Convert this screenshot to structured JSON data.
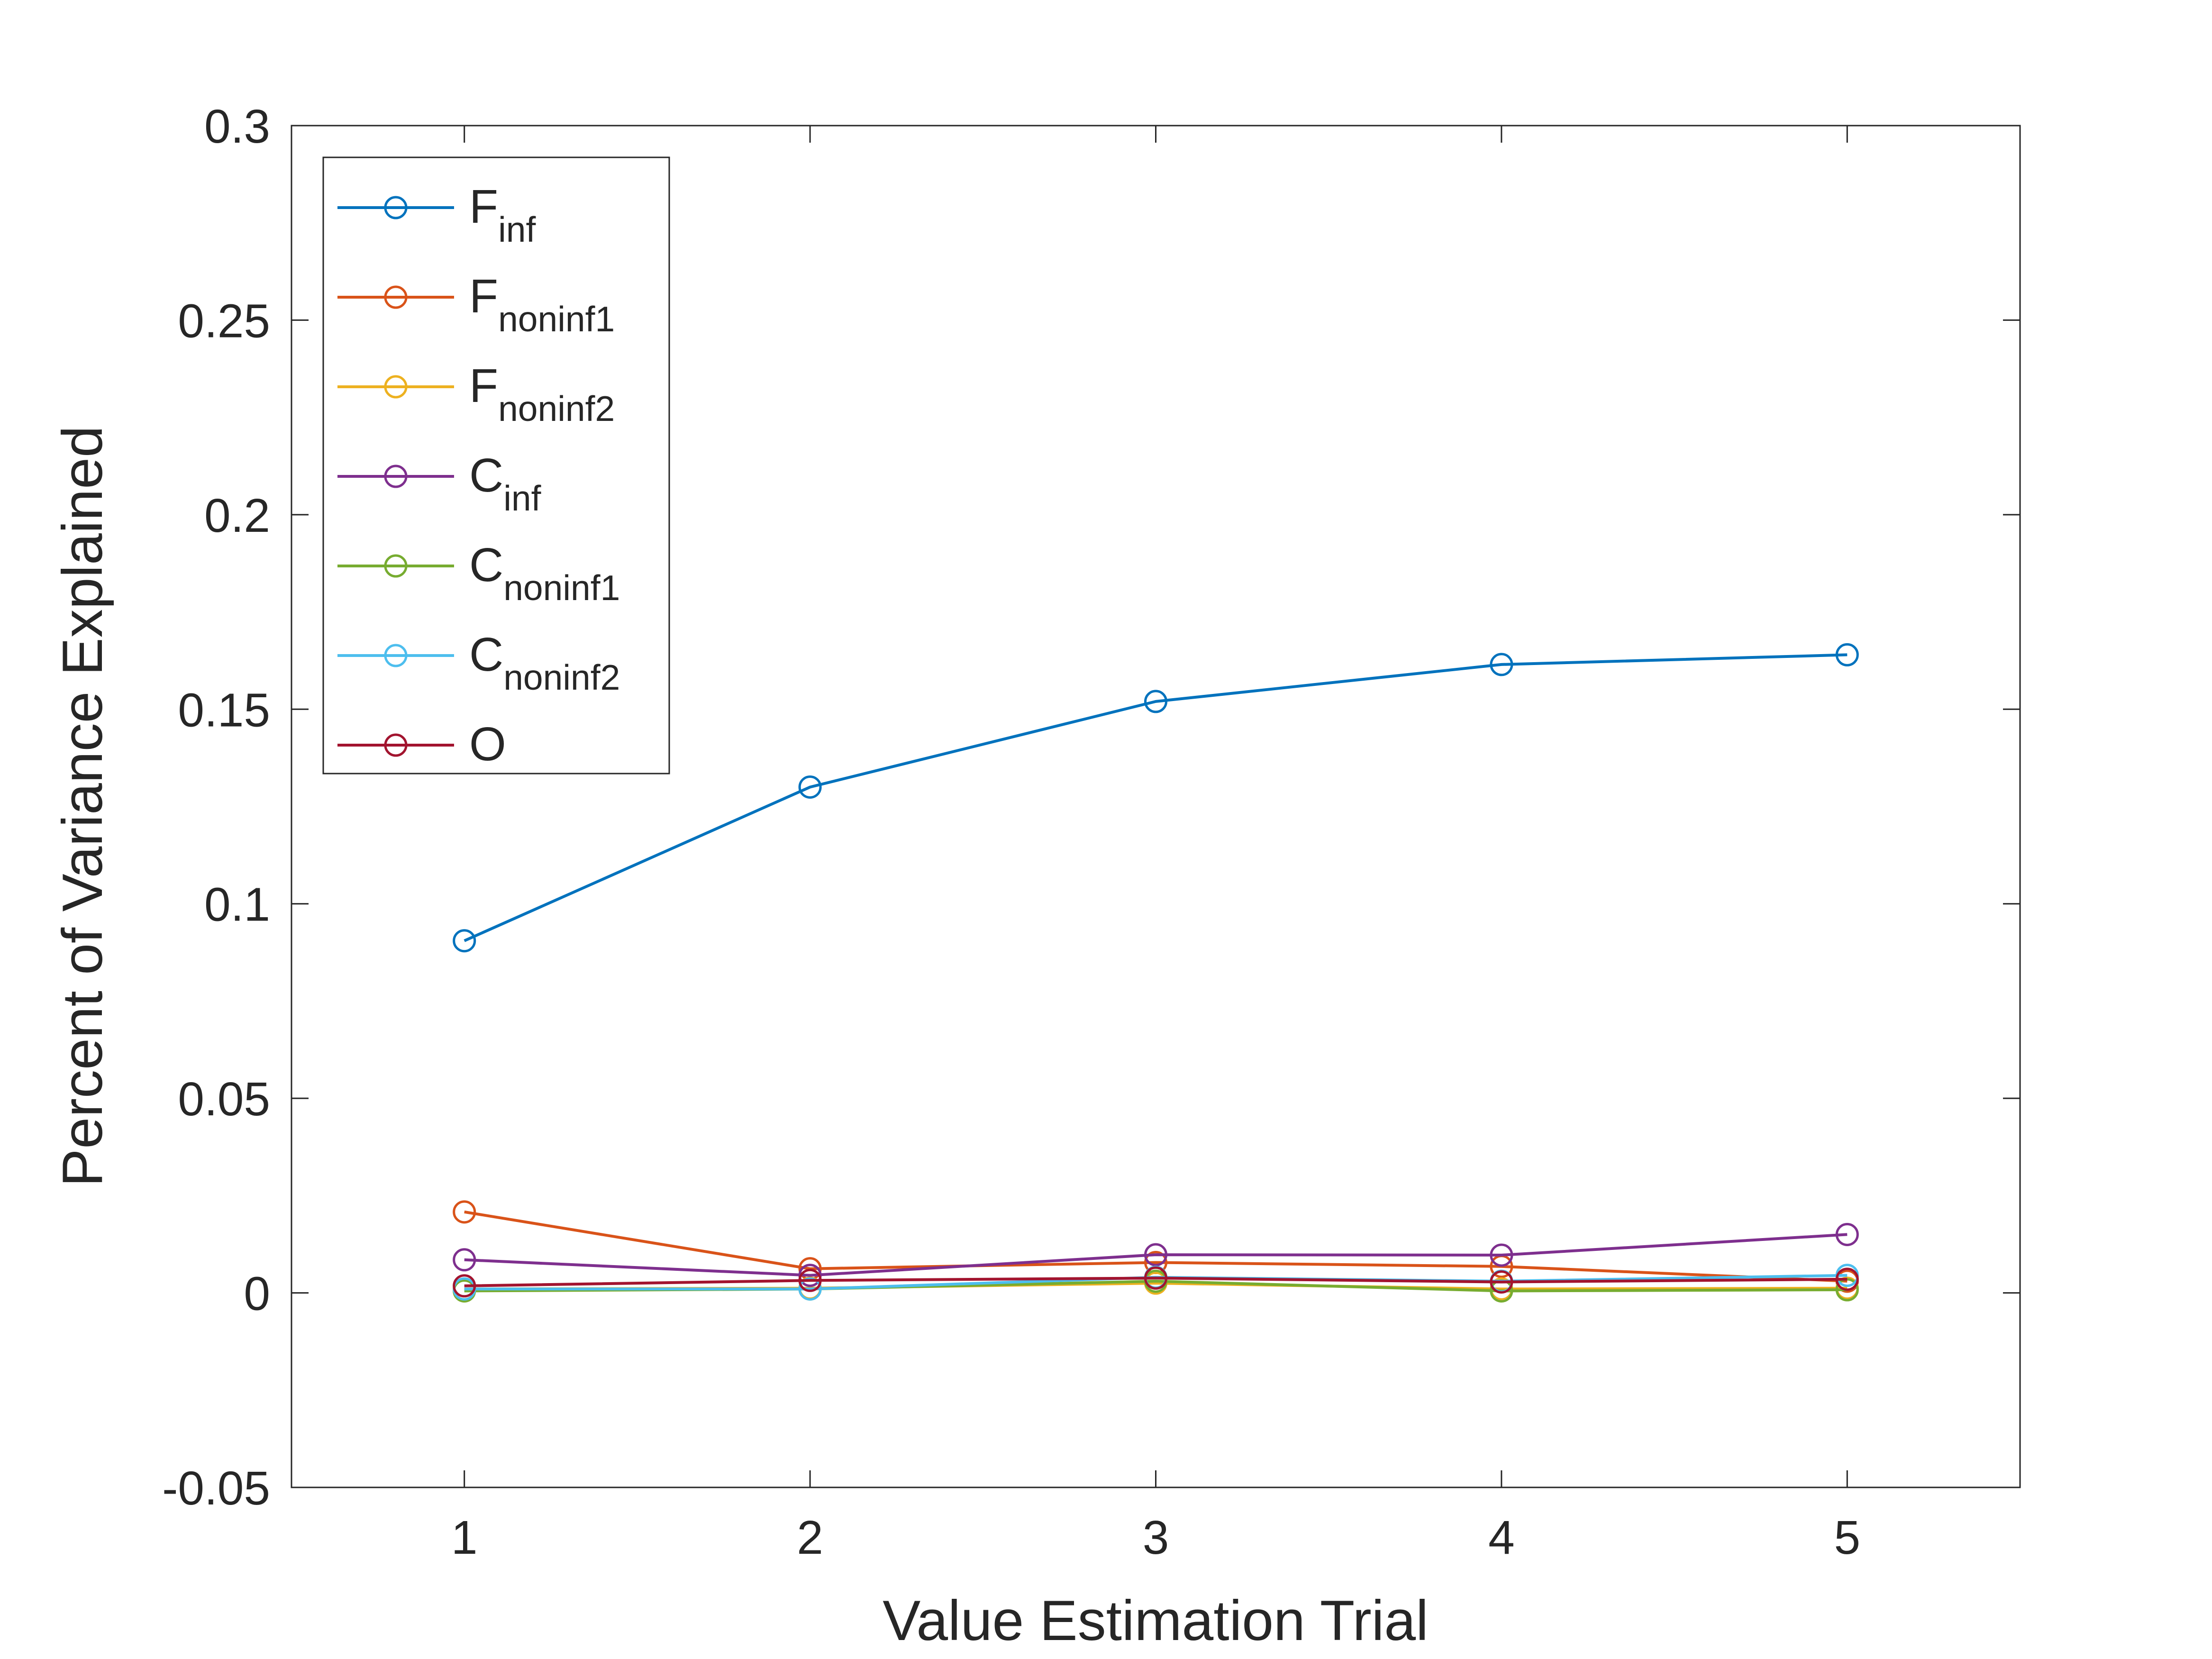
{
  "chart_data": {
    "type": "line",
    "title": "",
    "xlabel": "Value Estimation Trial",
    "ylabel": "Percent of Variance Explained",
    "xlim": [
      0.5,
      5.5
    ],
    "ylim": [
      -0.05,
      0.3
    ],
    "x": [
      1,
      2,
      3,
      4,
      5
    ],
    "xticks": [
      1,
      2,
      3,
      4,
      5
    ],
    "xtick_labels": [
      "1",
      "2",
      "3",
      "4",
      "5"
    ],
    "yticks": [
      -0.05,
      0,
      0.05,
      0.1,
      0.15,
      0.2,
      0.25,
      0.3
    ],
    "ytick_labels": [
      "-0.05",
      "0",
      "0.05",
      "0.1",
      "0.15",
      "0.2",
      "0.25",
      "0.3"
    ],
    "grid": false,
    "legend_position": "top-left",
    "marker": "circle",
    "series": [
      {
        "label_main": "F",
        "label_sub": "inf",
        "color": "#0072BD",
        "values": [
          0.0905,
          0.13,
          0.152,
          0.1615,
          0.164
        ]
      },
      {
        "label_main": "F",
        "label_sub": "noninf1",
        "color": "#D95319",
        "values": [
          0.0208,
          0.0062,
          0.0078,
          0.0068,
          0.003
        ]
      },
      {
        "label_main": "F",
        "label_sub": "noninf2",
        "color": "#EDB120",
        "values": [
          0.001,
          0.0012,
          0.0025,
          0.001,
          0.0012
        ]
      },
      {
        "label_main": "C",
        "label_sub": "inf",
        "color": "#7E2F8E",
        "values": [
          0.0085,
          0.0045,
          0.0098,
          0.0097,
          0.015
        ]
      },
      {
        "label_main": "C",
        "label_sub": "noninf1",
        "color": "#77AC30",
        "values": [
          0.0005,
          0.001,
          0.003,
          0.0005,
          0.0008
        ]
      },
      {
        "label_main": "C",
        "label_sub": "noninf2",
        "color": "#4DBEEE",
        "values": [
          0.001,
          0.001,
          0.004,
          0.003,
          0.0045
        ]
      },
      {
        "label_main": "O",
        "label_sub": "",
        "color": "#A2142F",
        "values": [
          0.0018,
          0.0032,
          0.0038,
          0.0028,
          0.0035
        ]
      }
    ]
  }
}
